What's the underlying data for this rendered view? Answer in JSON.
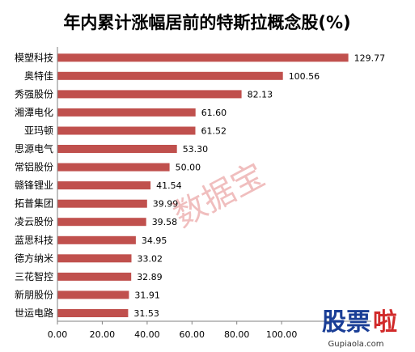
{
  "chart_data": {
    "type": "bar",
    "orientation": "horizontal",
    "title": "年内累计涨幅居前的特斯拉概念股(%)",
    "categories": [
      "模塑科技",
      "奥特佳",
      "秀强股份",
      "湘潭电化",
      "亚玛顿",
      "思源电气",
      "常铝股份",
      "赣锋锂业",
      "拓普集团",
      "凌云股份",
      "蓝思科技",
      "德方纳米",
      "三花智控",
      "新朋股份",
      "世运电路"
    ],
    "values": [
      129.77,
      100.56,
      82.13,
      61.6,
      61.52,
      53.3,
      50.0,
      41.54,
      39.99,
      39.58,
      34.95,
      33.02,
      32.89,
      31.91,
      31.53
    ],
    "value_labels": [
      "129.77",
      "100.56",
      "82.13",
      "61.60",
      "61.52",
      "53.30",
      "50.00",
      "41.54",
      "39.99",
      "39.58",
      "34.95",
      "33.02",
      "32.89",
      "31.91",
      "31.53"
    ],
    "xlim": [
      0,
      140
    ],
    "xticks": [
      "0.00",
      "20.00",
      "40.00",
      "60.00",
      "80.00",
      "100.00"
    ],
    "grid": false,
    "bar_color": "#c0504d"
  },
  "watermark": "数据宝",
  "logo": {
    "part1": "股票",
    "part2": "啦",
    "site": "Gupiaola.com"
  }
}
